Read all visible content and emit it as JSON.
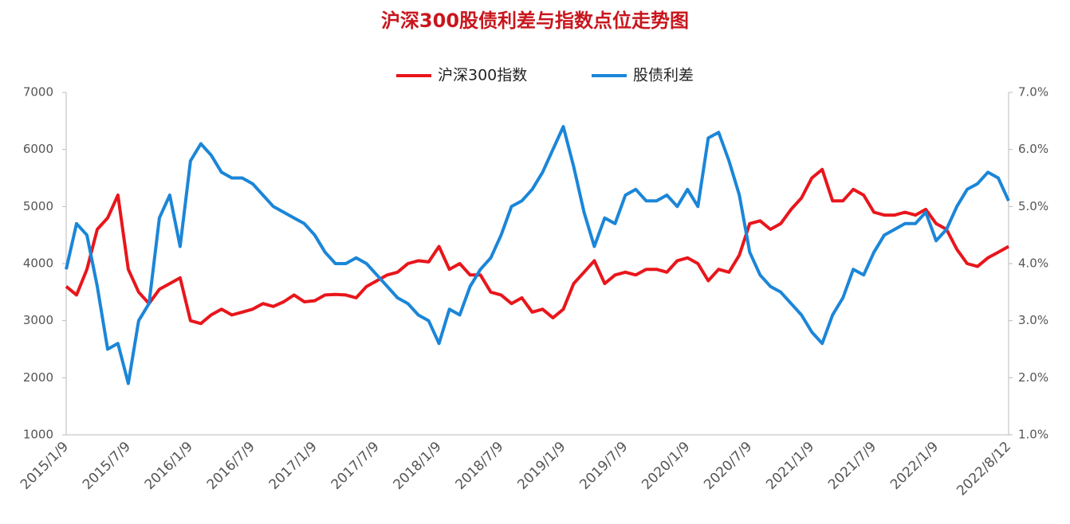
{
  "chart_data": {
    "type": "line",
    "title": "沪深300股债利差与指数点位走势图",
    "categories": [
      "2015/1/9",
      null,
      null,
      null,
      null,
      null,
      "2015/7/9",
      null,
      null,
      null,
      null,
      null,
      "2016/1/9",
      null,
      null,
      null,
      null,
      null,
      "2016/7/9",
      null,
      null,
      null,
      null,
      null,
      "2017/1/9",
      null,
      null,
      null,
      null,
      null,
      "2017/7/9",
      null,
      null,
      null,
      null,
      null,
      "2018/1/9",
      null,
      null,
      null,
      null,
      null,
      "2018/7/9",
      null,
      null,
      null,
      null,
      null,
      "2019/1/9",
      null,
      null,
      null,
      null,
      null,
      "2019/7/9",
      null,
      null,
      null,
      null,
      null,
      "2020/1/9",
      null,
      null,
      null,
      null,
      null,
      "2020/7/9",
      null,
      null,
      null,
      null,
      null,
      "2021/1/9",
      null,
      null,
      null,
      null,
      null,
      "2021/7/9",
      null,
      null,
      null,
      null,
      null,
      "2022/1/9",
      null,
      null,
      null,
      null,
      null,
      null,
      "2022/8/12"
    ],
    "series": [
      {
        "name": "沪深300指数",
        "color": "#e8161c",
        "values": [
          3600,
          3450,
          3900,
          4600,
          4800,
          5200,
          3900,
          3500,
          3300,
          3550,
          3650,
          3750,
          3000,
          2950,
          3100,
          3200,
          3100,
          3150,
          3200,
          3300,
          3250,
          3330,
          3450,
          3330,
          3350,
          3450,
          3460,
          3450,
          3400,
          3600,
          3700,
          3800,
          3850,
          4000,
          4050,
          4030,
          4300,
          3900,
          4000,
          3800,
          3800,
          3500,
          3450,
          3300,
          3400,
          3150,
          3200,
          3050,
          3200,
          3650,
          3850,
          4050,
          3650,
          3800,
          3850,
          3800,
          3900,
          3900,
          3850,
          4050,
          4100,
          4000,
          3700,
          3900,
          3850,
          4150,
          4700,
          4750,
          4600,
          4700,
          4950,
          5150,
          5500,
          5650,
          5100,
          5100,
          5300,
          5200,
          4900,
          4850,
          4850,
          4900,
          4850,
          4950,
          4700,
          4600,
          4250,
          4000,
          3950,
          4100,
          4200,
          4300
        ]
      },
      {
        "name": "股债利差",
        "color": "#1b86d8",
        "axis": "y2",
        "values": [
          3.9,
          4.7,
          4.5,
          3.6,
          2.5,
          2.6,
          1.9,
          3.0,
          3.3,
          4.8,
          5.2,
          4.3,
          5.8,
          6.1,
          5.9,
          5.6,
          5.5,
          5.5,
          5.4,
          5.2,
          5.0,
          4.9,
          4.8,
          4.7,
          4.5,
          4.2,
          4.0,
          4.0,
          4.1,
          4.0,
          3.8,
          3.6,
          3.4,
          3.3,
          3.1,
          3.0,
          2.6,
          3.2,
          3.1,
          3.6,
          3.9,
          4.1,
          4.5,
          5.0,
          5.1,
          5.3,
          5.6,
          6.0,
          6.4,
          5.7,
          4.9,
          4.3,
          4.8,
          4.7,
          5.2,
          5.3,
          5.1,
          5.1,
          5.2,
          5.0,
          5.3,
          5.0,
          6.2,
          6.3,
          5.8,
          5.2,
          4.2,
          3.8,
          3.6,
          3.5,
          3.3,
          3.1,
          2.8,
          2.6,
          3.1,
          3.4,
          3.9,
          3.8,
          4.2,
          4.5,
          4.6,
          4.7,
          4.7,
          4.9,
          4.4,
          4.6,
          5.0,
          5.3,
          5.4,
          5.6,
          5.5,
          5.1
        ]
      }
    ],
    "ylim": [
      1000,
      7000
    ],
    "yticks": [
      1000,
      2000,
      3000,
      4000,
      5000,
      6000,
      7000
    ],
    "y2lim": [
      1.0,
      7.0
    ],
    "y2ticks": [
      {
        "value": 1.0,
        "label": "1.0%"
      },
      {
        "value": 2.0,
        "label": "2.0%"
      },
      {
        "value": 3.0,
        "label": "3.0%"
      },
      {
        "value": 4.0,
        "label": "4.0%"
      },
      {
        "value": 5.0,
        "label": "5.0%"
      },
      {
        "value": 6.0,
        "label": "6.0%"
      },
      {
        "value": 7.0,
        "label": "7.0%"
      }
    ],
    "legend": "top",
    "grid": false
  }
}
